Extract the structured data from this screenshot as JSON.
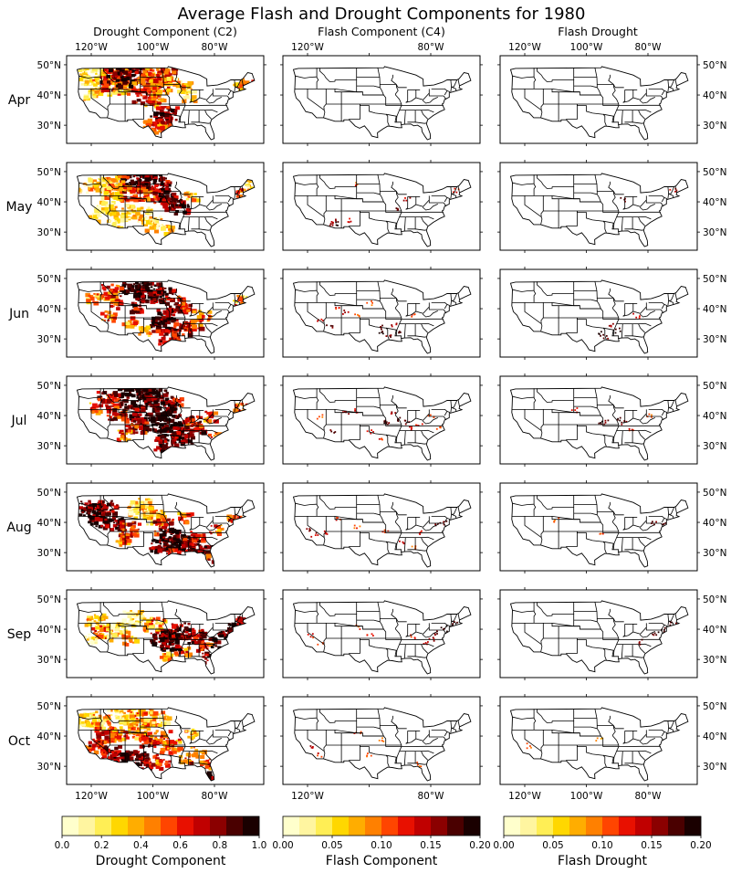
{
  "figure": {
    "title": "Average Flash and Drought Components for 1980",
    "columns": [
      "Drought Component (C2)",
      "Flash Component (C4)",
      "Flash Drought"
    ],
    "months": [
      "Apr",
      "May",
      "Jun",
      "Jul",
      "Aug",
      "Sep",
      "Oct"
    ],
    "lon_ticks": [
      "120°W",
      "100°W",
      "80°W"
    ],
    "lat_ticks": [
      "50°N",
      "40°N",
      "30°N"
    ],
    "colormap": [
      "#ffffcc",
      "#fff5a0",
      "#ffee55",
      "#ffd700",
      "#ffad00",
      "#ff8000",
      "#ff4500",
      "#e81000",
      "#c00000",
      "#8b0000",
      "#4a0000",
      "#1a0000"
    ],
    "state_line_color": "#000000",
    "colorbars": [
      {
        "label": "Drought Component",
        "min": 0.0,
        "max": 1.0,
        "tick_values": [
          0.0,
          0.2,
          0.4,
          0.6,
          0.8,
          1.0
        ],
        "tick_labels": [
          "0.0",
          "0.2",
          "0.4",
          "0.6",
          "0.8",
          "1.0"
        ]
      },
      {
        "label": "Flash Component",
        "min": 0.0,
        "max": 0.2,
        "tick_values": [
          0.0,
          0.05,
          0.1,
          0.15,
          0.2
        ],
        "tick_labels": [
          "0.00",
          "0.05",
          "0.10",
          "0.15",
          "0.20"
        ]
      },
      {
        "label": "Flash Drought",
        "min": 0.0,
        "max": 0.2,
        "tick_values": [
          0.0,
          0.05,
          0.1,
          0.15,
          0.2
        ],
        "tick_labels": [
          "0.00",
          "0.05",
          "0.10",
          "0.15",
          "0.20"
        ]
      }
    ]
  }
}
